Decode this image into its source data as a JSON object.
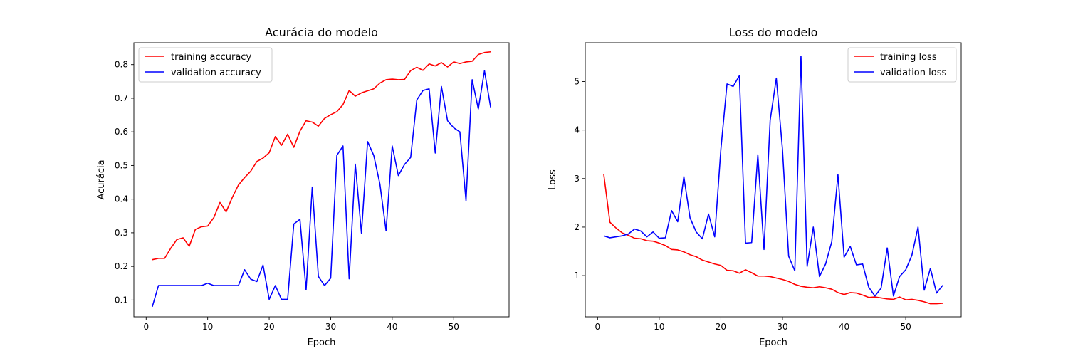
{
  "chart_data": [
    {
      "type": "line",
      "title": "Acurácia do modelo",
      "xlabel": "Epoch",
      "ylabel": "Acurácia",
      "xlim": [
        -2,
        59
      ],
      "ylim": [
        0.05,
        0.865
      ],
      "xticks": [
        0,
        10,
        20,
        30,
        40,
        50
      ],
      "yticks": [
        0.1,
        0.2,
        0.3,
        0.4,
        0.5,
        0.6,
        0.7,
        0.8
      ],
      "legend_position": "upper-left",
      "grid": false,
      "x": [
        1,
        2,
        3,
        4,
        5,
        6,
        7,
        8,
        9,
        10,
        11,
        12,
        13,
        14,
        15,
        16,
        17,
        18,
        19,
        20,
        21,
        22,
        23,
        24,
        25,
        26,
        27,
        28,
        29,
        30,
        31,
        32,
        33,
        34,
        35,
        36,
        37,
        38,
        39,
        40,
        41,
        42,
        43,
        44,
        45,
        46,
        47,
        48,
        49,
        50,
        51,
        52,
        53,
        54,
        55,
        56
      ],
      "series": [
        {
          "name": "training accuracy",
          "color": "#ff0000",
          "values": [
            0.22,
            0.224,
            0.224,
            0.254,
            0.28,
            0.285,
            0.26,
            0.31,
            0.318,
            0.32,
            0.345,
            0.39,
            0.362,
            0.405,
            0.442,
            0.464,
            0.483,
            0.512,
            0.522,
            0.538,
            0.586,
            0.56,
            0.593,
            0.554,
            0.602,
            0.633,
            0.629,
            0.617,
            0.64,
            0.651,
            0.66,
            0.681,
            0.723,
            0.706,
            0.716,
            0.722,
            0.728,
            0.745,
            0.755,
            0.757,
            0.755,
            0.756,
            0.782,
            0.792,
            0.783,
            0.802,
            0.796,
            0.806,
            0.793,
            0.808,
            0.803,
            0.808,
            0.81,
            0.83,
            0.836,
            0.838
          ]
        },
        {
          "name": "validation accuracy",
          "color": "#0000ff",
          "values": [
            0.08,
            0.143,
            0.143,
            0.143,
            0.143,
            0.143,
            0.143,
            0.143,
            0.143,
            0.15,
            0.143,
            0.143,
            0.143,
            0.143,
            0.143,
            0.19,
            0.162,
            0.155,
            0.204,
            0.102,
            0.143,
            0.102,
            0.102,
            0.326,
            0.34,
            0.13,
            0.436,
            0.17,
            0.143,
            0.165,
            0.53,
            0.558,
            0.163,
            0.504,
            0.299,
            0.571,
            0.53,
            0.445,
            0.306,
            0.558,
            0.47,
            0.503,
            0.524,
            0.695,
            0.723,
            0.728,
            0.537,
            0.735,
            0.633,
            0.612,
            0.6,
            0.395,
            0.755,
            0.668,
            0.782,
            0.673
          ]
        }
      ]
    },
    {
      "type": "line",
      "title": "Loss do modelo",
      "xlabel": "Epoch",
      "ylabel": "Loss",
      "xlim": [
        -2,
        59
      ],
      "ylim": [
        0.15,
        5.8
      ],
      "xticks": [
        0,
        10,
        20,
        30,
        40,
        50
      ],
      "yticks": [
        1,
        2,
        3,
        4,
        5
      ],
      "legend_position": "upper-right",
      "grid": false,
      "x": [
        1,
        2,
        3,
        4,
        5,
        6,
        7,
        8,
        9,
        10,
        11,
        12,
        13,
        14,
        15,
        16,
        17,
        18,
        19,
        20,
        21,
        22,
        23,
        24,
        25,
        26,
        27,
        28,
        29,
        30,
        31,
        32,
        33,
        34,
        35,
        36,
        37,
        38,
        39,
        40,
        41,
        42,
        43,
        44,
        45,
        46,
        47,
        48,
        49,
        50,
        51,
        52,
        53,
        54,
        55,
        56
      ],
      "series": [
        {
          "name": "training loss",
          "color": "#ff0000",
          "values": [
            3.09,
            2.1,
            1.98,
            1.88,
            1.83,
            1.77,
            1.76,
            1.72,
            1.71,
            1.67,
            1.62,
            1.54,
            1.53,
            1.49,
            1.43,
            1.39,
            1.32,
            1.28,
            1.24,
            1.21,
            1.11,
            1.1,
            1.05,
            1.12,
            1.06,
            0.99,
            0.99,
            0.98,
            0.95,
            0.92,
            0.88,
            0.82,
            0.78,
            0.76,
            0.75,
            0.77,
            0.75,
            0.72,
            0.65,
            0.61,
            0.65,
            0.64,
            0.6,
            0.55,
            0.56,
            0.54,
            0.52,
            0.51,
            0.56,
            0.5,
            0.51,
            0.49,
            0.46,
            0.42,
            0.42,
            0.43
          ]
        },
        {
          "name": "validation loss",
          "color": "#0000ff",
          "values": [
            1.82,
            1.78,
            1.8,
            1.82,
            1.86,
            1.96,
            1.92,
            1.8,
            1.9,
            1.77,
            1.78,
            2.34,
            2.11,
            3.04,
            2.19,
            1.9,
            1.76,
            2.27,
            1.8,
            3.6,
            4.95,
            4.9,
            5.12,
            1.67,
            1.68,
            3.49,
            1.54,
            4.2,
            5.07,
            3.6,
            1.4,
            1.1,
            5.52,
            1.19,
            2.0,
            0.98,
            1.24,
            1.7,
            3.08,
            1.38,
            1.6,
            1.22,
            1.24,
            0.76,
            0.58,
            0.74,
            1.57,
            0.58,
            0.98,
            1.12,
            1.42,
            2.0,
            0.7,
            1.15,
            0.64,
            0.8
          ]
        }
      ]
    }
  ]
}
